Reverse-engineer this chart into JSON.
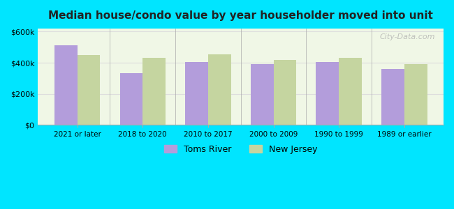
{
  "title": "Median house/condo value by year householder moved into unit",
  "categories": [
    "2021 or later",
    "2018 to 2020",
    "2010 to 2017",
    "2000 to 2009",
    "1990 to 1999",
    "1989 or earlier"
  ],
  "toms_river": [
    510000,
    335000,
    405000,
    393000,
    405000,
    362000
  ],
  "new_jersey": [
    450000,
    430000,
    453000,
    420000,
    430000,
    390000
  ],
  "toms_river_color": "#b39ddb",
  "new_jersey_color": "#c5d5a0",
  "background_color": "#00e5ff",
  "plot_bg_start": "#f0f7e6",
  "plot_bg_end": "#ffffff",
  "ylim": [
    0,
    620000
  ],
  "yticks": [
    0,
    200000,
    400000,
    600000
  ],
  "ytick_labels": [
    "$0",
    "$200k",
    "$400k",
    "$600k"
  ],
  "legend_toms_river": "Toms River",
  "legend_new_jersey": "New Jersey",
  "watermark": "City-Data.com"
}
